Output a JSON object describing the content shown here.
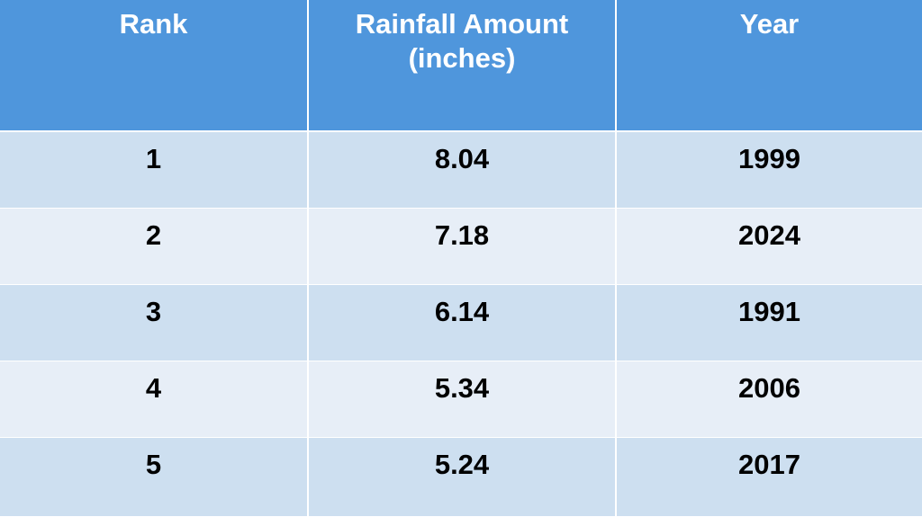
{
  "chart_data": {
    "type": "table",
    "columns": [
      "Rank",
      "Rainfall Amount (inches)",
      "Year"
    ],
    "header_lines": {
      "rank": "Rank",
      "rainfall_line1": "Rainfall Amount",
      "rainfall_line2": "(inches)",
      "year": "Year"
    },
    "rows": [
      {
        "rank": "1",
        "rainfall": "8.04",
        "year": "1999"
      },
      {
        "rank": "2",
        "rainfall": "7.18",
        "year": "2024"
      },
      {
        "rank": "3",
        "rainfall": "6.14",
        "year": "1991"
      },
      {
        "rank": "4",
        "rainfall": "5.34",
        "year": "2006"
      },
      {
        "rank": "5",
        "rainfall": "5.24",
        "year": "2017"
      }
    ]
  },
  "colors": {
    "header_bg": "#4f96dc",
    "row_odd_bg": "#cddff0",
    "row_even_bg": "#e7eef7",
    "header_text": "#ffffff",
    "body_text": "#000000"
  }
}
